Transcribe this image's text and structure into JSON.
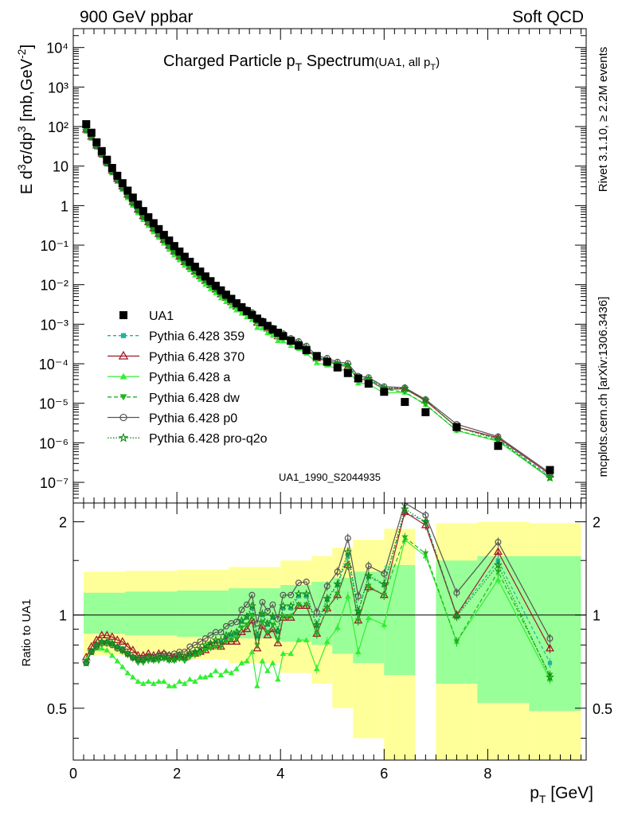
{
  "header": {
    "left": "900 GeV ppbar",
    "right": "Soft QCD"
  },
  "title": {
    "main_prefix": "Charged Particle p",
    "main_sub": "T",
    "main_suffix": " Spectrum",
    "small_prefix": "(UA1, all p",
    "small_sub": "T",
    "small_suffix": ")"
  },
  "side_labels": {
    "rivet": "Rivet 3.1.10, ≥ 2.2M events",
    "mcplots": "mcplots.cern.ch [arXiv:1306.3436]"
  },
  "analysis_id": "UA1_1990_S2044935",
  "colors": {
    "band_yellow": "#ffff99",
    "band_green": "#99ff99",
    "ua1": "#000000",
    "p359": "#1fb39a",
    "p370": "#a01c2c",
    "pa": "#33ee33",
    "pdw": "#1fb31f",
    "pp0": "#555555",
    "pq2o": "#138a13"
  },
  "chart_data": [
    {
      "type": "scatter",
      "name": "main",
      "ylabel_prefix": "E d",
      "ylabel_sup1": "3",
      "ylabel_mid": "σ/dp",
      "ylabel_sup2": "3",
      "ylabel_suffix": " [mb,GeV",
      "ylabel_sup3": "-2",
      "ylabel_end": "]",
      "yscale": "log",
      "xlim": [
        0,
        9.9
      ],
      "ylim": [
        3e-08,
        30000.0
      ],
      "ytick_labels": [
        "10⁻⁷",
        "10⁻⁶",
        "10⁻⁵",
        "10⁻⁴",
        "10⁻³",
        "10⁻²",
        "10⁻¹",
        "1",
        "10",
        "10²",
        "10³",
        "10⁴"
      ],
      "ytick_values": [
        1e-07,
        1e-06,
        1e-05,
        0.0001,
        0.001,
        0.01,
        0.1,
        1,
        10,
        100,
        1000,
        10000
      ],
      "legend_position": "lower-left",
      "x": [
        0.25,
        0.35,
        0.45,
        0.55,
        0.65,
        0.75,
        0.85,
        0.95,
        1.05,
        1.15,
        1.25,
        1.35,
        1.45,
        1.55,
        1.65,
        1.75,
        1.85,
        1.95,
        2.05,
        2.15,
        2.25,
        2.35,
        2.45,
        2.55,
        2.65,
        2.75,
        2.85,
        2.95,
        3.05,
        3.15,
        3.25,
        3.35,
        3.45,
        3.55,
        3.65,
        3.75,
        3.85,
        3.95,
        4.05,
        4.2,
        4.35,
        4.5,
        4.7,
        4.9,
        5.1,
        5.3,
        5.5,
        5.7,
        6.0,
        6.4,
        6.8,
        7.4,
        8.2,
        9.2
      ],
      "series": [
        {
          "name": "UA1",
          "values": [
            115,
            70,
            40,
            24,
            14.5,
            9,
            5.7,
            3.7,
            2.4,
            1.6,
            1.07,
            0.73,
            0.51,
            0.36,
            0.255,
            0.182,
            0.131,
            0.095,
            0.069,
            0.051,
            0.038,
            0.0285,
            0.0215,
            0.0162,
            0.0123,
            0.0094,
            0.0072,
            0.0056,
            0.0044,
            0.0034,
            0.0027,
            0.00215,
            0.00172,
            0.00139,
            0.00112,
            0.00091,
            0.00074,
            0.00061,
            0.0005,
            0.00038,
            0.00029,
            0.00022,
            0.000157,
            0.000112,
            8.05e-05,
            5.8e-05,
            4.25e-05,
            3.13e-05,
            1.95e-05,
            1.08e-05,
            5.95e-06,
            2.5e-06,
            8.35e-07,
            2.05e-07
          ],
          "errors": [
            5.5,
            3.3,
            1.9,
            1.1,
            0.68,
            0.42,
            0.27,
            0.17,
            0.11,
            0.075,
            0.05,
            0.034,
            0.024,
            0.017,
            0.012,
            0.0085,
            0.0061,
            0.0044,
            0.0032,
            0.0024,
            0.0018,
            0.0013,
            0.001,
            0.00076,
            0.00058,
            0.00044,
            0.00034,
            0.00026,
            0.00021,
            0.00016,
            0.00013,
            0.0001,
            8.1e-05,
            6.5e-05,
            5.3e-05,
            4.3e-05,
            3.5e-05,
            2.9e-05,
            2.4e-05,
            1.8e-05,
            1.4e-05,
            1.1e-05,
            7.5e-06,
            5.4e-06,
            3.9e-06,
            2.8e-06,
            2.1e-06,
            1.5e-06,
            9.5e-07,
            5.3e-07,
            2.9e-07,
            1.2e-07,
            4e-08,
            1e-08
          ]
        },
        {
          "name": "Pythia 6.428 359"
        },
        {
          "name": "Pythia 6.428 370"
        },
        {
          "name": "Pythia 6.428 a"
        },
        {
          "name": "Pythia 6.428 dw"
        },
        {
          "name": "Pythia 6.428 p0"
        },
        {
          "name": "Pythia 6.428 pro-q2o"
        }
      ]
    },
    {
      "type": "line",
      "name": "ratio",
      "xlabel": "p",
      "xlabel_sub": "T",
      "xlabel_unit": " [GeV]",
      "ylabel": "Ratio to UA1",
      "xlim": [
        0,
        9.9
      ],
      "ylim": [
        0.34,
        2.3
      ],
      "xtick_labels": [
        "0",
        "2",
        "4",
        "6",
        "8"
      ],
      "xtick_values": [
        0,
        2,
        4,
        6,
        8
      ],
      "ytick_labels": [
        "0.5",
        "1",
        "2"
      ],
      "ytick_values": [
        0.5,
        1,
        2
      ],
      "bands": {
        "edges": [
          0.2,
          1.0,
          2.0,
          3.0,
          4.0,
          4.6,
          5.0,
          5.4,
          6.0,
          6.6,
          7.0,
          7.8,
          8.8,
          9.8
        ],
        "green_low": [
          0.87,
          0.86,
          0.85,
          0.84,
          0.82,
          0.8,
          0.75,
          0.7,
          0.64,
          0.64,
          0.6,
          0.52,
          0.49
        ],
        "green_high": [
          1.18,
          1.19,
          1.2,
          1.22,
          1.25,
          1.28,
          1.32,
          1.38,
          1.45,
          1.45,
          1.5,
          1.55,
          1.55
        ],
        "yellow_low": [
          0.74,
          0.73,
          0.72,
          0.7,
          0.65,
          0.6,
          0.5,
          0.4,
          0.33,
          0.33,
          0.28,
          0.25,
          0.25
        ],
        "yellow_high": [
          1.38,
          1.39,
          1.4,
          1.43,
          1.5,
          1.55,
          1.65,
          1.75,
          1.9,
          1.88,
          1.98,
          2.0,
          1.98
        ]
      },
      "series": [
        {
          "name": "Pythia 6.428 359",
          "values": [
            0.7,
            0.77,
            0.8,
            0.82,
            0.82,
            0.81,
            0.79,
            0.78,
            0.75,
            0.73,
            0.71,
            0.71,
            0.72,
            0.72,
            0.73,
            0.73,
            0.72,
            0.72,
            0.73,
            0.72,
            0.75,
            0.76,
            0.77,
            0.79,
            0.81,
            0.82,
            0.82,
            0.85,
            0.86,
            0.87,
            0.95,
            0.98,
            1.05,
            0.85,
            1.0,
            0.93,
            0.98,
            0.88,
            1.05,
            1.05,
            1.15,
            1.15,
            0.92,
            1.12,
            1.25,
            1.55,
            1.02,
            1.33,
            1.25,
            2.15,
            2.0,
            1.0,
            1.5,
            0.7
          ]
        },
        {
          "name": "Pythia 6.428 370",
          "values": [
            0.73,
            0.79,
            0.83,
            0.86,
            0.86,
            0.85,
            0.83,
            0.82,
            0.79,
            0.77,
            0.74,
            0.74,
            0.75,
            0.74,
            0.75,
            0.75,
            0.74,
            0.73,
            0.74,
            0.73,
            0.75,
            0.75,
            0.76,
            0.77,
            0.79,
            0.8,
            0.79,
            0.82,
            0.82,
            0.82,
            0.88,
            0.9,
            0.96,
            0.78,
            0.92,
            0.86,
            0.9,
            0.81,
            0.98,
            0.98,
            1.07,
            1.07,
            0.87,
            1.05,
            1.16,
            1.45,
            0.96,
            1.23,
            1.16,
            2.15,
            1.95,
            1.0,
            1.6,
            0.78
          ]
        },
        {
          "name": "Pythia 6.428 a",
          "values": [
            0.72,
            0.76,
            0.78,
            0.78,
            0.77,
            0.74,
            0.71,
            0.68,
            0.65,
            0.63,
            0.61,
            0.6,
            0.61,
            0.6,
            0.61,
            0.61,
            0.59,
            0.59,
            0.61,
            0.6,
            0.62,
            0.61,
            0.63,
            0.63,
            0.64,
            0.66,
            0.64,
            0.66,
            0.65,
            0.67,
            0.7,
            0.71,
            0.76,
            0.59,
            0.71,
            0.66,
            0.7,
            0.62,
            0.75,
            0.75,
            0.83,
            0.83,
            0.67,
            0.82,
            0.91,
            1.15,
            0.76,
            0.98,
            0.93,
            1.75,
            1.55,
            0.82,
            1.3,
            0.62
          ]
        },
        {
          "name": "Pythia 6.428 dw",
          "values": [
            0.71,
            0.76,
            0.79,
            0.81,
            0.81,
            0.8,
            0.78,
            0.76,
            0.74,
            0.72,
            0.7,
            0.7,
            0.71,
            0.71,
            0.71,
            0.72,
            0.71,
            0.71,
            0.72,
            0.71,
            0.73,
            0.74,
            0.75,
            0.77,
            0.78,
            0.79,
            0.79,
            0.82,
            0.83,
            0.84,
            0.91,
            0.93,
            1.0,
            0.8,
            0.95,
            0.88,
            0.93,
            0.83,
            0.99,
            0.99,
            1.08,
            1.08,
            0.87,
            1.05,
            1.17,
            1.45,
            0.96,
            1.24,
            1.16,
            1.78,
            1.58,
            0.82,
            1.38,
            0.64
          ]
        },
        {
          "name": "Pythia 6.428 p0",
          "values": [
            0.7,
            0.76,
            0.79,
            0.81,
            0.81,
            0.8,
            0.78,
            0.77,
            0.75,
            0.73,
            0.72,
            0.72,
            0.73,
            0.73,
            0.74,
            0.75,
            0.74,
            0.75,
            0.76,
            0.76,
            0.79,
            0.8,
            0.82,
            0.84,
            0.86,
            0.88,
            0.88,
            0.92,
            0.94,
            0.95,
            1.04,
            1.08,
            1.16,
            0.94,
            1.1,
            1.03,
            1.08,
            0.97,
            1.16,
            1.16,
            1.27,
            1.28,
            1.02,
            1.24,
            1.38,
            1.77,
            1.15,
            1.44,
            1.36,
            2.3,
            2.1,
            1.18,
            1.72,
            0.84
          ]
        },
        {
          "name": "Pythia 6.428 pro-q2o",
          "values": [
            0.7,
            0.76,
            0.8,
            0.82,
            0.82,
            0.81,
            0.79,
            0.77,
            0.75,
            0.73,
            0.72,
            0.72,
            0.73,
            0.72,
            0.73,
            0.73,
            0.72,
            0.72,
            0.74,
            0.73,
            0.75,
            0.76,
            0.78,
            0.8,
            0.81,
            0.83,
            0.83,
            0.86,
            0.87,
            0.88,
            0.96,
            0.99,
            1.07,
            0.86,
            1.01,
            0.94,
            0.99,
            0.89,
            1.07,
            1.07,
            1.17,
            1.17,
            0.93,
            1.13,
            1.26,
            1.6,
            1.03,
            1.34,
            1.26,
            2.2,
            2.0,
            0.99,
            1.45,
            0.63
          ]
        }
      ]
    }
  ]
}
